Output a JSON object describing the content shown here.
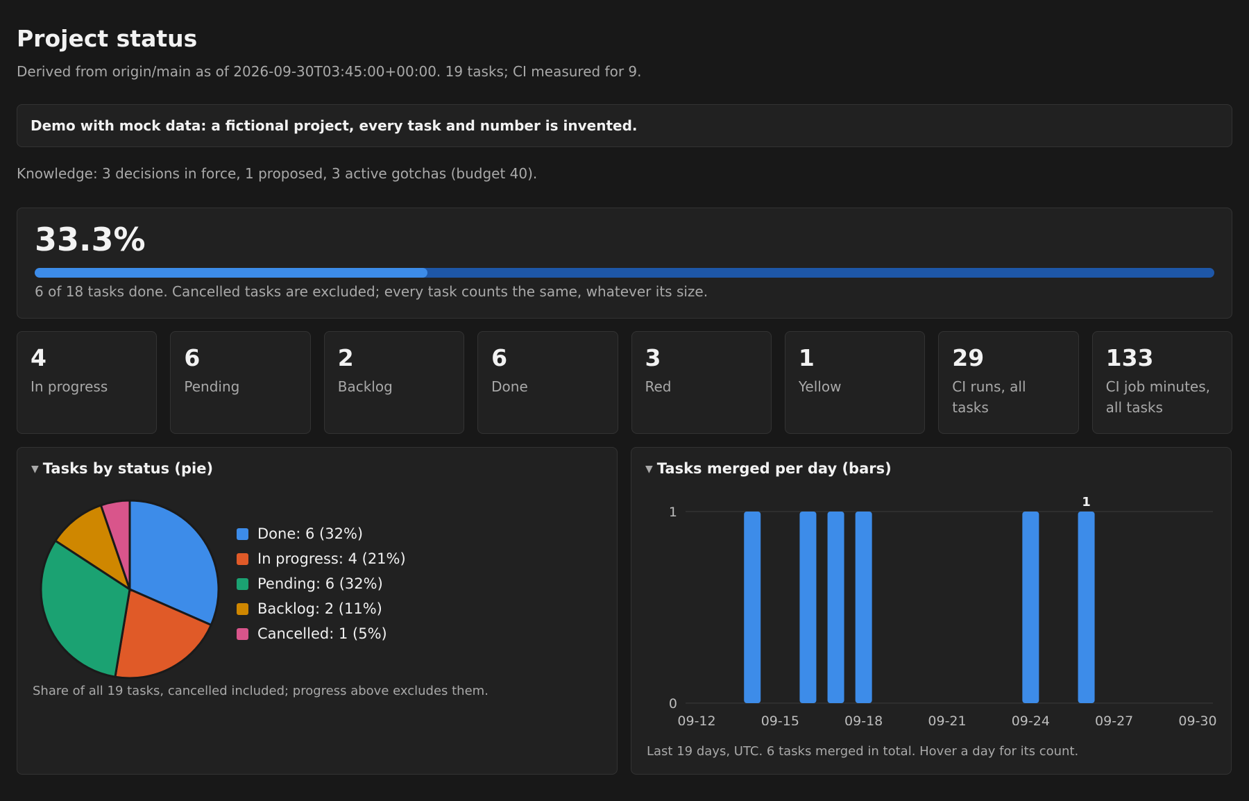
{
  "header": {
    "title": "Project status",
    "subtitle": "Derived from origin/main as of 2026-09-30T03:45:00+00:00. 19 tasks; CI measured for 9."
  },
  "banner": "Demo with mock data: a fictional project, every task and number is invented.",
  "knowledge": "Knowledge: 3 decisions in force, 1 proposed, 3 active gotchas (budget 40).",
  "progress": {
    "value_label": "33.3%",
    "fraction": 0.333,
    "caption": "6 of 18 tasks done. Cancelled tasks are excluded; every task counts the same, whatever its size."
  },
  "stats": [
    {
      "value": "4",
      "label": "In progress"
    },
    {
      "value": "6",
      "label": "Pending"
    },
    {
      "value": "2",
      "label": "Backlog"
    },
    {
      "value": "6",
      "label": "Done"
    },
    {
      "value": "3",
      "label": "Red"
    },
    {
      "value": "1",
      "label": "Yellow"
    },
    {
      "value": "29",
      "label": "CI runs, all tasks"
    },
    {
      "value": "133",
      "label": "CI job minutes, all tasks"
    }
  ],
  "pie_panel": {
    "heading": "Tasks by status (pie)",
    "note": "Share of all 19 tasks, cancelled included; progress above excludes them."
  },
  "bar_panel": {
    "heading": "Tasks merged per day (bars)",
    "note": "Last 19 days, UTC. 6 tasks merged in total. Hover a day for its count."
  },
  "colors": {
    "done": "#3d8ce9",
    "in_progress": "#e05a28",
    "pending": "#1ba272",
    "backlog": "#cf8700",
    "cancelled": "#d9558b",
    "bar": "#3d8ce9"
  },
  "chart_data": [
    {
      "type": "pie",
      "title": "Tasks by status (pie)",
      "slices": [
        {
          "label": "Done: 6 (32%)",
          "value": 6,
          "color": "#3d8ce9"
        },
        {
          "label": "In progress: 4 (21%)",
          "value": 4,
          "color": "#e05a28"
        },
        {
          "label": "Pending: 6 (32%)",
          "value": 6,
          "color": "#1ba272"
        },
        {
          "label": "Backlog: 2 (11%)",
          "value": 2,
          "color": "#cf8700"
        },
        {
          "label": "Cancelled: 1 (5%)",
          "value": 1,
          "color": "#d9558b"
        }
      ],
      "legend": "right"
    },
    {
      "type": "bar",
      "title": "Tasks merged per day (bars)",
      "x": [
        "2026-09-12",
        "2026-09-13",
        "2026-09-14",
        "2026-09-15",
        "2026-09-16",
        "2026-09-17",
        "2026-09-18",
        "2026-09-19",
        "2026-09-20",
        "2026-09-21",
        "2026-09-22",
        "2026-09-23",
        "2026-09-24",
        "2026-09-25",
        "2026-09-26",
        "2026-09-27",
        "2026-09-28",
        "2026-09-29",
        "2026-09-30"
      ],
      "values": [
        0,
        0,
        1,
        0,
        1,
        1,
        1,
        0,
        0,
        0,
        0,
        0,
        1,
        0,
        1,
        0,
        0,
        0,
        0
      ],
      "x_ticks": [
        "09-12",
        "09-15",
        "09-18",
        "09-21",
        "09-24",
        "09-27",
        "09-30"
      ],
      "y_ticks": [
        "0",
        "1"
      ],
      "ylim": [
        0,
        1
      ],
      "data_labels": [
        {
          "index": 14,
          "text": "1"
        }
      ],
      "grid": true
    }
  ]
}
